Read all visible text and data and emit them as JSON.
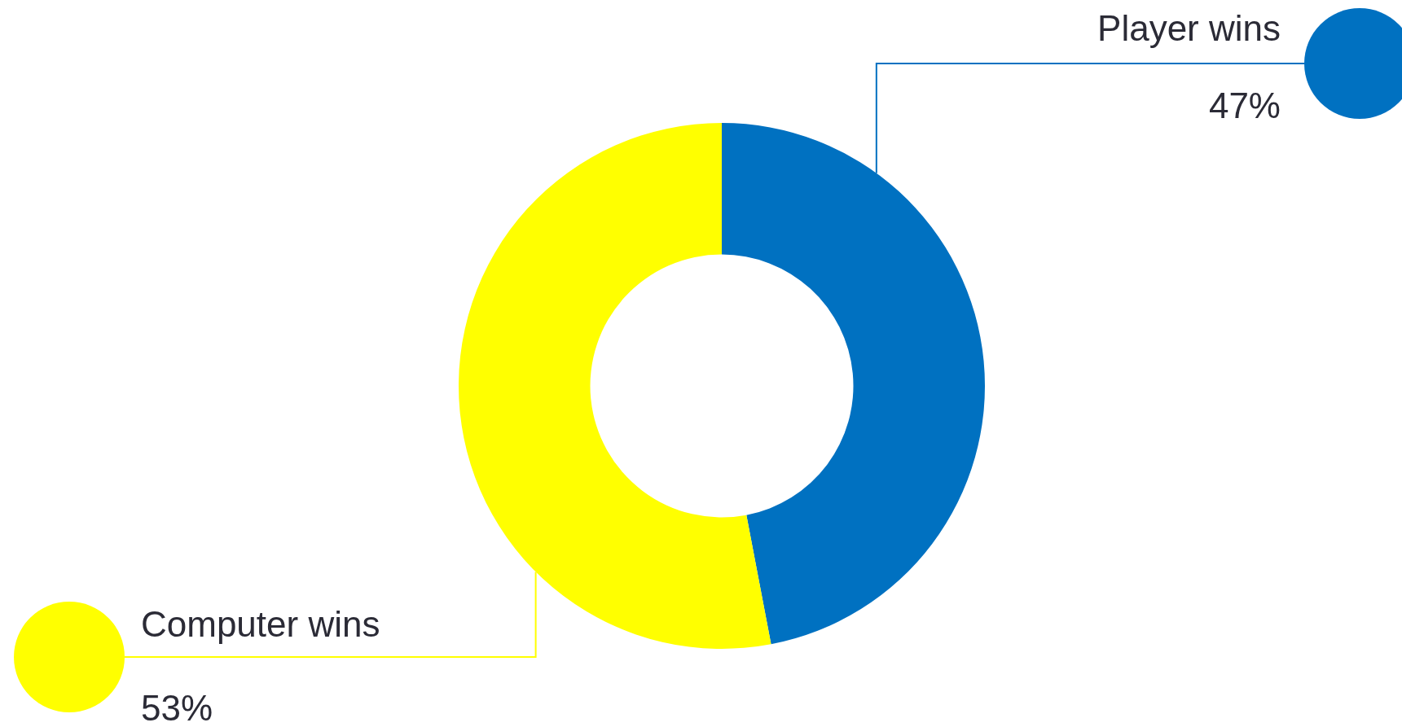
{
  "chart_data": {
    "type": "donut",
    "categories": [
      "Player wins",
      "Computer wins"
    ],
    "values": [
      47,
      53
    ],
    "colors": [
      "#0071c1",
      "#ffff00"
    ],
    "value_labels": [
      "47%",
      "53%"
    ]
  }
}
